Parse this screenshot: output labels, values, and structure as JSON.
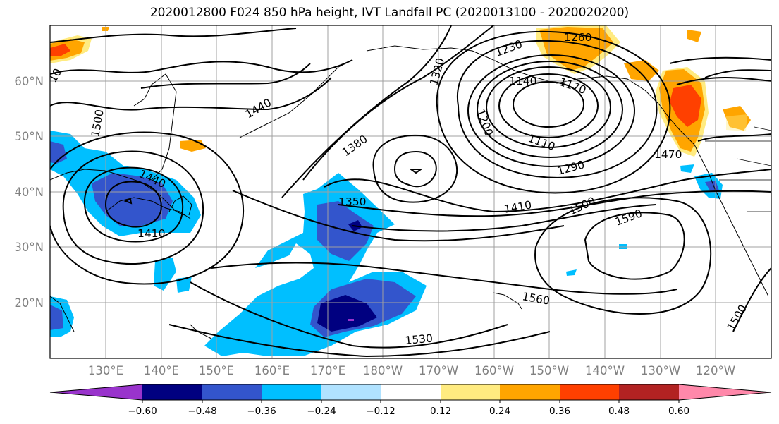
{
  "title": "2020012800 F024 850 hPa height, IVT Landfall PC (2020013100 - 2020020200)",
  "map": {
    "lat_labels": [
      "60°N",
      "50°N",
      "40°N",
      "30°N",
      "20°N"
    ],
    "lon_labels": [
      "130°E",
      "140°E",
      "150°E",
      "160°E",
      "170°E",
      "180°W",
      "170°W",
      "160°W",
      "150°W",
      "140°W",
      "130°W",
      "120°W"
    ],
    "contour_labels": [
      {
        "text": "1260"
      },
      {
        "text": "1230"
      },
      {
        "text": "1320"
      },
      {
        "text": "1140"
      },
      {
        "text": "1170"
      },
      {
        "text": "1200"
      },
      {
        "text": "1110"
      },
      {
        "text": "1290"
      },
      {
        "text": "1440"
      },
      {
        "text": "1380"
      },
      {
        "text": "1350"
      },
      {
        "text": "1410"
      },
      {
        "text": "1500"
      },
      {
        "text": "1590"
      },
      {
        "text": "1560"
      },
      {
        "text": "1530"
      },
      {
        "text": "1470"
      },
      {
        "text": "1500"
      },
      {
        "text": "1440"
      },
      {
        "text": "1410"
      },
      {
        "text": "1500"
      },
      {
        "text": "10"
      }
    ],
    "fill_colors": {
      "neg_060": "#9933cc",
      "neg_048": "#000080",
      "neg_036": "#3355cc",
      "neg_024": "#00bfff",
      "neg_012": "#b0e2ff",
      "neutral": "#ffffff",
      "pos_012": "#ffeb80",
      "pos_024": "#ffa500",
      "pos_036": "#ff4000",
      "pos_048": "#b22222",
      "pos_060": "#ff88aa"
    }
  },
  "colorbar": {
    "ticks": [
      "−0.60",
      "−0.48",
      "−0.36",
      "−0.24",
      "−0.12",
      "0.12",
      "0.24",
      "0.36",
      "0.48",
      "0.60"
    ],
    "colors": [
      "#9933cc",
      "#000080",
      "#3355cc",
      "#00bfff",
      "#b0e2ff",
      "#ffffff",
      "#ffeb80",
      "#ffa500",
      "#ff4000",
      "#b22222",
      "#ff88aa"
    ]
  }
}
